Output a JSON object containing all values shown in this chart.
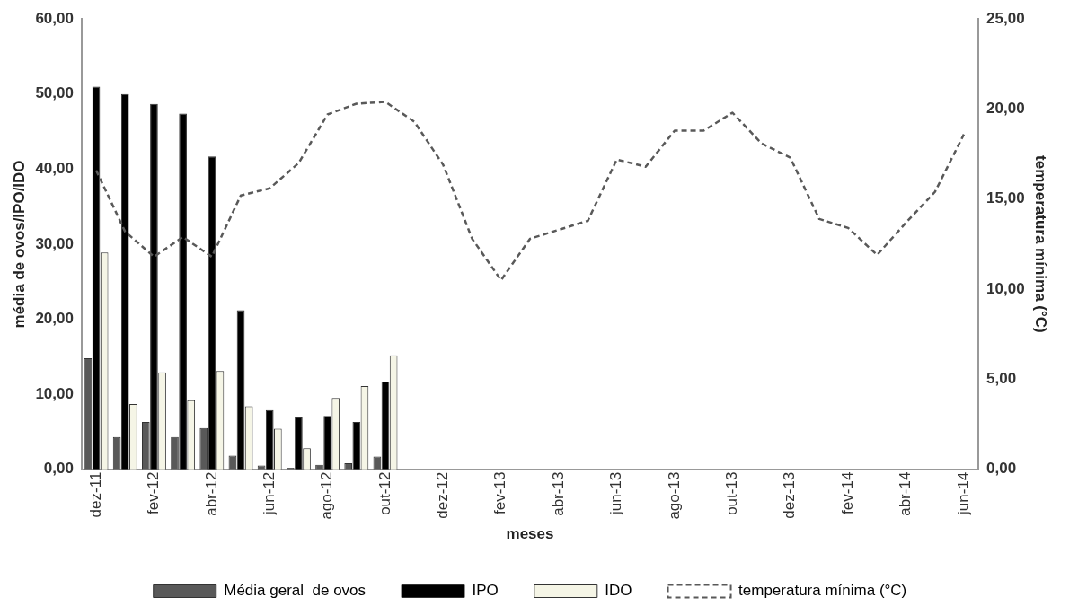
{
  "chart_data": {
    "type": "bar",
    "xlabel": "meses",
    "ylabel": "média de ovos/IPO/IDO",
    "y2label": "temperatura mínima (°C)",
    "categories": [
      "dez-11",
      null,
      "fev-12",
      null,
      "abr-12",
      null,
      "jun-12",
      null,
      "ago-12",
      null,
      "out-12",
      null,
      "dez-12",
      null,
      "fev-13",
      null,
      "abr-13",
      null,
      "jun-13",
      null,
      "ago-13",
      null,
      "out-13",
      null,
      "dez-13",
      null,
      "fev-14",
      null,
      "abr-14",
      null,
      "jun-14"
    ],
    "series": [
      {
        "name": "Média geral  de ovos",
        "color": "#595959",
        "values": [
          14.8,
          4.3,
          6.3,
          4.3,
          5.5,
          1.8,
          0.5,
          0.2,
          0.6,
          0.8,
          1.7,
          null,
          null,
          null,
          null,
          null,
          null,
          null,
          null,
          null,
          null,
          null,
          null,
          null,
          null,
          null,
          null,
          null,
          null,
          null,
          null
        ]
      },
      {
        "name": "IPO",
        "color": "#000000",
        "values": [
          51.0,
          50.0,
          48.7,
          47.4,
          41.7,
          21.2,
          7.9,
          6.9,
          7.1,
          6.3,
          11.7,
          null,
          null,
          null,
          null,
          null,
          null,
          null,
          null,
          null,
          null,
          null,
          null,
          null,
          null,
          null,
          null,
          null,
          null,
          null,
          null
        ]
      },
      {
        "name": "IDO",
        "color": "#f5f5e6",
        "values": [
          28.9,
          8.7,
          12.9,
          9.2,
          13.1,
          8.4,
          5.4,
          2.8,
          9.5,
          11.1,
          15.2,
          null,
          null,
          null,
          null,
          null,
          null,
          null,
          null,
          null,
          null,
          null,
          null,
          null,
          null,
          null,
          null,
          null,
          null,
          null,
          null
        ]
      },
      {
        "name": "temperatura mínima (°C)",
        "type": "line",
        "axis": "y2",
        "color": "#595959",
        "line_style": "dashed",
        "marker": "none",
        "values": [
          16.6,
          13.2,
          11.8,
          12.9,
          11.8,
          15.2,
          15.6,
          17.0,
          19.7,
          20.3,
          20.4,
          19.3,
          16.9,
          12.8,
          10.5,
          12.8,
          13.3,
          13.8,
          17.2,
          16.8,
          18.8,
          18.8,
          19.8,
          18.1,
          17.3,
          13.9,
          13.4,
          11.9,
          13.7,
          15.4,
          18.6
        ]
      }
    ],
    "ylim": [
      0,
      60
    ],
    "yticks": [
      {
        "value": 0,
        "label": "0,00"
      },
      {
        "value": 10,
        "label": "10,00"
      },
      {
        "value": 20,
        "label": "20,00"
      },
      {
        "value": 30,
        "label": "30,00"
      },
      {
        "value": 40,
        "label": "40,00"
      },
      {
        "value": 50,
        "label": "50,00"
      },
      {
        "value": 60,
        "label": "60,00"
      }
    ],
    "y2lim": [
      0,
      25
    ],
    "y2ticks": [
      {
        "value": 0,
        "label": "0,00"
      },
      {
        "value": 5,
        "label": "5,00"
      },
      {
        "value": 10,
        "label": "10,00"
      },
      {
        "value": 15,
        "label": "15,00"
      },
      {
        "value": 20,
        "label": "20,00"
      },
      {
        "value": 25,
        "label": "25,00"
      }
    ],
    "grid": false,
    "legend": "bottom"
  }
}
